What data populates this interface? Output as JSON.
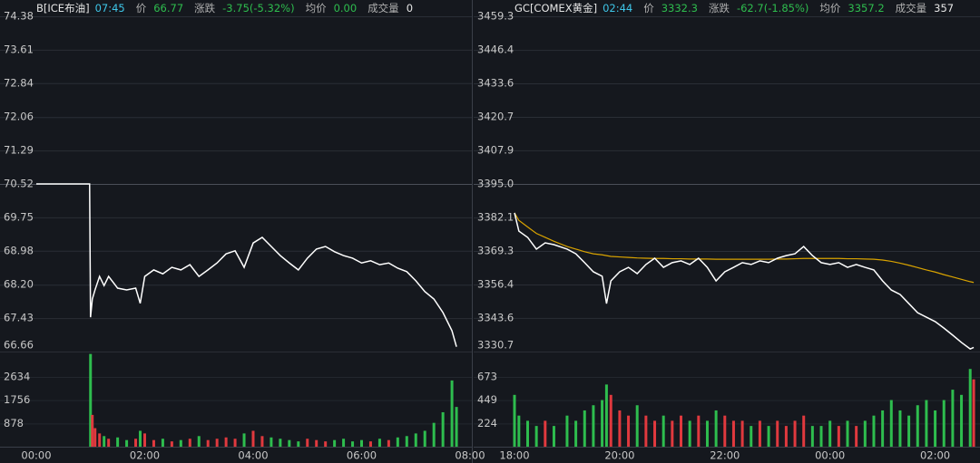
{
  "chart_data": [
    {
      "type": "line",
      "header": {
        "name": "B[ICE布油]",
        "time": "07:45",
        "fields": [
          {
            "label": "价",
            "value": "66.77",
            "color": "#2ebd4e"
          },
          {
            "label": "涨跌",
            "value": "-3.75(-5.32%)",
            "color": "#2ebd4e"
          },
          {
            "label": "均价",
            "value": "0.00",
            "color": "#2ebd4e"
          },
          {
            "label": "成交量",
            "value": "0",
            "color": "#e6e6e6"
          }
        ]
      },
      "xlim": [
        "00:00",
        "08:00"
      ],
      "xticks": [
        "00:00",
        "02:00",
        "04:00",
        "06:00",
        "08:00"
      ],
      "ylim": [
        66.66,
        74.38
      ],
      "yticks": [
        74.38,
        73.61,
        72.84,
        {
          "value": 72.06,
          "label": "72.06"
        },
        71.29,
        70.52,
        69.75,
        68.98,
        {
          "value": 68.2,
          "label": "68.20"
        },
        67.43,
        66.66
      ],
      "up_color": "#e0393e",
      "down_color": "#2ebd4e",
      "line_color": "#ffffff",
      "price": {
        "x": [
          "00:00",
          "00:59",
          "01:00",
          "01:02",
          "01:05",
          "01:10",
          "01:15",
          "01:20",
          "01:30",
          "01:40",
          "01:50",
          "01:55",
          "02:00",
          "02:10",
          "02:20",
          "02:30",
          "02:40",
          "02:50",
          "03:00",
          "03:10",
          "03:20",
          "03:30",
          "03:40",
          "03:50",
          "04:00",
          "04:10",
          "04:20",
          "04:30",
          "04:40",
          "04:50",
          "05:00",
          "05:10",
          "05:20",
          "05:30",
          "05:40",
          "05:50",
          "06:00",
          "06:10",
          "06:20",
          "06:30",
          "06:40",
          "06:50",
          "07:00",
          "07:10",
          "07:20",
          "07:30",
          "07:40",
          "07:45"
        ],
        "values": [
          70.52,
          70.52,
          67.45,
          67.87,
          68.08,
          68.39,
          68.18,
          68.39,
          68.12,
          68.08,
          68.12,
          67.77,
          68.39,
          68.54,
          68.45,
          68.6,
          68.54,
          68.66,
          68.39,
          68.54,
          68.7,
          68.91,
          68.98,
          68.6,
          69.16,
          69.29,
          69.08,
          68.87,
          68.7,
          68.54,
          68.81,
          69.02,
          69.08,
          68.96,
          68.87,
          68.81,
          68.7,
          68.75,
          68.66,
          68.7,
          68.58,
          68.5,
          68.29,
          68.04,
          67.87,
          67.56,
          67.14,
          66.77
        ]
      },
      "volume": {
        "ylim": [
          0,
          3590
        ],
        "yticks": [
          878,
          1756,
          2634
        ],
        "values": [
          0,
          0,
          3500,
          1200,
          700,
          500,
          400,
          300,
          350,
          250,
          300,
          600,
          500,
          250,
          300,
          200,
          250,
          300,
          400,
          250,
          300,
          350,
          300,
          500,
          600,
          400,
          350,
          300,
          250,
          200,
          300,
          250,
          200,
          250,
          300,
          200,
          250,
          200,
          300,
          250,
          350,
          400,
          500,
          600,
          900,
          1300,
          2500,
          1500
        ]
      }
    },
    {
      "type": "line",
      "header": {
        "name": "GC[COMEX黄金]",
        "time": "02:44",
        "fields": [
          {
            "label": "价",
            "value": "3332.3",
            "color": "#2ebd4e"
          },
          {
            "label": "涨跌",
            "value": "-62.7(-1.85%)",
            "color": "#2ebd4e"
          },
          {
            "label": "均价",
            "value": "3357.2",
            "color": "#2ebd4e"
          },
          {
            "label": "成交量",
            "value": "357",
            "color": "#e6e6e6"
          }
        ]
      },
      "xlim": [
        "18:00",
        "02:46"
      ],
      "xticks": [
        "18:00",
        "20:00",
        "22:00",
        "00:00",
        "02:00"
      ],
      "ylim": [
        3330.7,
        3459.3
      ],
      "yticks": [
        3459.3,
        3446.4,
        3433.6,
        3420.7,
        3407.9,
        {
          "value": 3395,
          "label": "3395.0"
        },
        3382.1,
        3369.3,
        3356.4,
        3343.6,
        3330.7
      ],
      "up_color": "#e0393e",
      "down_color": "#2ebd4e",
      "line_color": "#ffffff",
      "avg_color": "#d9a300",
      "price": {
        "x": [
          "18:00",
          "18:05",
          "18:15",
          "18:25",
          "18:35",
          "18:45",
          "19:00",
          "19:10",
          "19:20",
          "19:30",
          "19:40",
          "19:45",
          "19:50",
          "20:00",
          "20:10",
          "20:20",
          "20:30",
          "20:40",
          "20:50",
          "21:00",
          "21:10",
          "21:20",
          "21:30",
          "21:40",
          "21:50",
          "22:00",
          "22:10",
          "22:20",
          "22:30",
          "22:40",
          "22:50",
          "23:00",
          "23:10",
          "23:20",
          "23:30",
          "23:40",
          "23:50",
          "00:00",
          "00:10",
          "00:20",
          "00:30",
          "00:40",
          "00:50",
          "01:00",
          "01:10",
          "01:20",
          "01:30",
          "01:40",
          "01:50",
          "02:00",
          "02:10",
          "02:20",
          "02:30",
          "02:40",
          "02:44"
        ],
        "values": [
          3383.9,
          3376.9,
          3374.5,
          3370.0,
          3372.4,
          3371.7,
          3370.0,
          3368.2,
          3364.8,
          3361.3,
          3359.6,
          3349.1,
          3357.8,
          3361.3,
          3363.0,
          3360.6,
          3364.1,
          3366.5,
          3363.0,
          3364.8,
          3365.5,
          3364.1,
          3366.5,
          3363.0,
          3357.8,
          3361.3,
          3363.0,
          3364.8,
          3364.1,
          3365.5,
          3364.8,
          3366.5,
          3367.5,
          3368.2,
          3371.0,
          3367.5,
          3364.8,
          3364.1,
          3364.8,
          3363.0,
          3364.1,
          3363.0,
          3362.0,
          3357.8,
          3354.3,
          3352.6,
          3349.1,
          3345.6,
          3343.9,
          3342.2,
          3339.7,
          3337.0,
          3334.2,
          3331.7,
          3332.3
        ],
        "avg": [
          3383.9,
          3381.0,
          3378.5,
          3376.0,
          3374.5,
          3373.0,
          3371.0,
          3370.0,
          3369.0,
          3368.2,
          3367.8,
          3367.5,
          3367.2,
          3367.0,
          3366.8,
          3366.6,
          3366.5,
          3366.4,
          3366.4,
          3366.3,
          3366.3,
          3366.2,
          3366.2,
          3366.2,
          3366.1,
          3366.1,
          3366.1,
          3366.1,
          3366.1,
          3366.1,
          3366.1,
          3366.2,
          3366.2,
          3366.3,
          3366.4,
          3366.4,
          3366.4,
          3366.4,
          3366.4,
          3366.3,
          3366.3,
          3366.2,
          3366.1,
          3365.8,
          3365.3,
          3364.6,
          3363.8,
          3362.9,
          3362.0,
          3361.2,
          3360.2,
          3359.3,
          3358.4,
          3357.5,
          3357.2
        ]
      },
      "volume": {
        "ylim": [
          0,
          918
        ],
        "yticks": [
          224,
          449,
          673
        ],
        "values": [
          500,
          300,
          250,
          200,
          250,
          200,
          300,
          250,
          350,
          400,
          450,
          600,
          500,
          350,
          300,
          400,
          300,
          250,
          300,
          250,
          300,
          250,
          300,
          250,
          350,
          300,
          250,
          250,
          200,
          250,
          200,
          250,
          200,
          250,
          300,
          200,
          200,
          250,
          200,
          250,
          200,
          250,
          300,
          350,
          450,
          350,
          300,
          400,
          450,
          350,
          450,
          550,
          500,
          750,
          650
        ]
      }
    }
  ]
}
